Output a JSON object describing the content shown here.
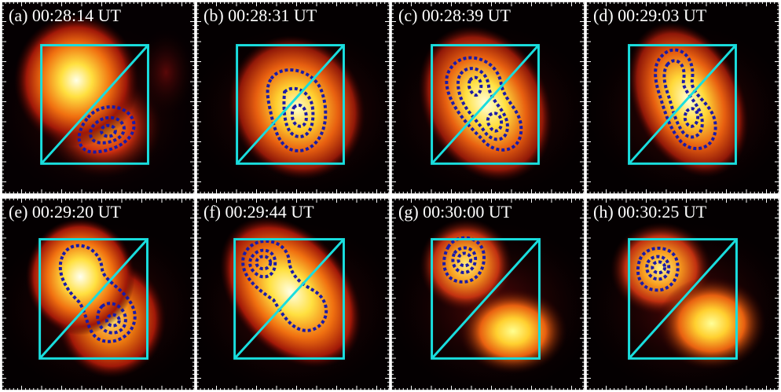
{
  "colors": {
    "box": "#19dede",
    "contour": "#1a1aa8",
    "label": "#ffffff",
    "background": "#000000"
  },
  "panels": [
    {
      "id": "a",
      "label": "(a)  00:28:14 UT"
    },
    {
      "id": "b",
      "label": "(b)  00:28:31 UT"
    },
    {
      "id": "c",
      "label": "(c)  00:28:39 UT"
    },
    {
      "id": "d",
      "label": "(d)  00:29:03 UT"
    },
    {
      "id": "e",
      "label": "(e)  00:29:20 UT"
    },
    {
      "id": "f",
      "label": "(f)  00:29:44 UT"
    },
    {
      "id": "g",
      "label": "(g)  00:30:00 UT"
    },
    {
      "id": "h",
      "label": "(h)  00:30:25 UT"
    }
  ]
}
